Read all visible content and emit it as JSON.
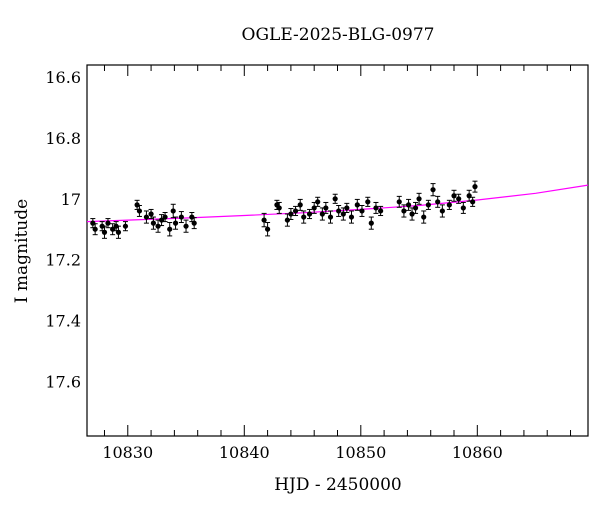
{
  "chart_data": {
    "type": "scatter",
    "title": "OGLE-2025-BLG-0977",
    "xlabel": "HJD - 2450000",
    "ylabel": "I magnitude",
    "xlim": [
      10826.5,
      10869.5
    ],
    "ylim": [
      17.78,
      16.56
    ],
    "y_inverted": true,
    "x_ticks": [
      10830,
      10840,
      10850,
      10860
    ],
    "x_tick_labels": [
      "10830",
      "10840",
      "10850",
      "10860"
    ],
    "y_ticks": [
      16.6,
      16.8,
      17.0,
      17.2,
      17.4,
      17.6
    ],
    "y_tick_labels": [
      "16.6",
      "16.8",
      "17",
      "17.2",
      "17.4",
      "17.6"
    ],
    "grid": false,
    "colors": {
      "points": "#000000",
      "model": "#ff00ff"
    },
    "model": {
      "name": "",
      "x": [
        10826.5,
        10830,
        10835,
        10840,
        10845,
        10850,
        10855,
        10860,
        10865,
        10869.5
      ],
      "y": [
        17.075,
        17.07,
        17.063,
        17.055,
        17.046,
        17.035,
        17.022,
        17.004,
        16.982,
        16.955
      ]
    },
    "series": [
      {
        "name": "",
        "x": [
          10827.0,
          10827.2,
          10827.8,
          10828.0,
          10828.3,
          10828.7,
          10829.0,
          10829.2,
          10829.8,
          10830.8,
          10831.0,
          10831.6,
          10832.0,
          10832.2,
          10832.6,
          10832.9,
          10833.2,
          10833.6,
          10833.9,
          10834.1,
          10834.6,
          10835.0,
          10835.5,
          10835.7,
          10841.7,
          10842.0,
          10842.8,
          10843.0,
          10843.7,
          10844.0,
          10844.4,
          10844.8,
          10845.1,
          10845.6,
          10846.0,
          10846.3,
          10846.7,
          10847.0,
          10847.4,
          10847.8,
          10848.1,
          10848.5,
          10848.8,
          10849.2,
          10849.7,
          10850.1,
          10850.6,
          10850.9,
          10851.3,
          10851.7,
          10853.3,
          10853.7,
          10854.1,
          10854.4,
          10854.7,
          10855.0,
          10855.4,
          10855.8,
          10856.2,
          10856.6,
          10857.0,
          10857.6,
          10858.0,
          10858.4,
          10858.8,
          10859.3,
          10859.6,
          10859.8
        ],
        "y": [
          17.08,
          17.1,
          17.09,
          17.11,
          17.08,
          17.1,
          17.09,
          17.11,
          17.09,
          17.02,
          17.04,
          17.06,
          17.05,
          17.08,
          17.09,
          17.07,
          17.06,
          17.1,
          17.04,
          17.08,
          17.06,
          17.09,
          17.06,
          17.08,
          17.07,
          17.1,
          17.02,
          17.03,
          17.07,
          17.05,
          17.04,
          17.02,
          17.06,
          17.05,
          17.03,
          17.01,
          17.05,
          17.03,
          17.06,
          17.0,
          17.04,
          17.05,
          17.03,
          17.06,
          17.02,
          17.04,
          17.01,
          17.08,
          17.03,
          17.04,
          17.01,
          17.04,
          17.02,
          17.05,
          17.03,
          17.0,
          17.06,
          17.02,
          16.97,
          17.01,
          17.04,
          17.02,
          16.99,
          17.0,
          17.03,
          16.99,
          17.01,
          16.96
        ],
        "yerr": [
          0.015,
          0.018,
          0.015,
          0.02,
          0.015,
          0.018,
          0.015,
          0.02,
          0.015,
          0.015,
          0.018,
          0.02,
          0.015,
          0.02,
          0.02,
          0.018,
          0.015,
          0.022,
          0.022,
          0.02,
          0.018,
          0.02,
          0.015,
          0.018,
          0.022,
          0.022,
          0.015,
          0.018,
          0.02,
          0.018,
          0.015,
          0.018,
          0.02,
          0.015,
          0.018,
          0.015,
          0.02,
          0.018,
          0.02,
          0.015,
          0.018,
          0.02,
          0.015,
          0.02,
          0.018,
          0.018,
          0.015,
          0.02,
          0.018,
          0.015,
          0.018,
          0.02,
          0.018,
          0.02,
          0.018,
          0.018,
          0.02,
          0.015,
          0.02,
          0.018,
          0.02,
          0.015,
          0.018,
          0.015,
          0.018,
          0.018,
          0.015,
          0.018
        ]
      }
    ]
  }
}
